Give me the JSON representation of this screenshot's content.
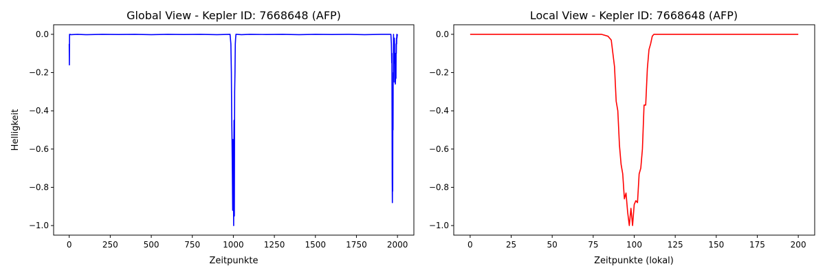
{
  "chart_data": [
    {
      "type": "line",
      "title": "Global View - Kepler ID: 7668648 (AFP)",
      "xlabel": "Zeitpunkte",
      "ylabel": "Helligkeit",
      "xlim": [
        -95,
        2100
      ],
      "ylim": [
        -1.05,
        0.05
      ],
      "xticks": [
        0,
        250,
        500,
        750,
        1000,
        1250,
        1500,
        1750,
        2000
      ],
      "yticks": [
        0.0,
        -0.2,
        -0.4,
        -0.6,
        -0.8,
        -1.0
      ],
      "xtick_labels": [
        "0",
        "250",
        "500",
        "750",
        "1000",
        "1250",
        "1500",
        "1750",
        "2000"
      ],
      "ytick_labels": [
        "0.0",
        "−0.2",
        "−0.4",
        "−0.6",
        "−0.8",
        "−1.0"
      ],
      "grid": false,
      "series": [
        {
          "color": "#0000ff",
          "x": [
            0,
            1,
            2,
            3,
            5,
            10,
            50,
            100,
            200,
            300,
            400,
            500,
            600,
            700,
            800,
            900,
            980,
            985,
            988,
            990,
            992,
            994,
            996,
            998,
            1000,
            1002,
            1004,
            1006,
            1008,
            1010,
            1012,
            1014,
            1016,
            1020,
            1050,
            1100,
            1200,
            1300,
            1400,
            1500,
            1600,
            1700,
            1800,
            1900,
            1960,
            1963,
            1965,
            1966,
            1967,
            1968,
            1969,
            1970,
            1971,
            1972,
            1973,
            1974,
            1975,
            1976,
            1977,
            1978,
            1979,
            1980,
            1981,
            1982,
            1983,
            1984,
            1985,
            1986,
            1987,
            1988,
            1989,
            1990,
            1991,
            1992,
            1993,
            1994,
            1995,
            1996,
            1997,
            1998,
            2000
          ],
          "y": [
            -0.05,
            -0.16,
            0.0,
            -0.003,
            0.0,
            -0.002,
            0.0,
            -0.002,
            0.0,
            -0.001,
            0.0,
            -0.002,
            0.0,
            -0.001,
            0.0,
            -0.002,
            0.0,
            -0.05,
            -0.2,
            -0.43,
            -0.55,
            -0.72,
            -0.92,
            -0.55,
            -0.75,
            -1.0,
            -0.45,
            -0.95,
            -0.3,
            -0.2,
            -0.05,
            -0.02,
            0.0,
            0.0,
            -0.002,
            0.0,
            -0.001,
            0.0,
            -0.002,
            0.0,
            -0.001,
            0.0,
            -0.002,
            0.0,
            0.0,
            -0.05,
            -0.15,
            -0.1,
            -0.4,
            -0.76,
            -0.88,
            -0.7,
            -0.82,
            -0.35,
            -0.5,
            -0.2,
            -0.25,
            0.0,
            -0.15,
            -0.05,
            -0.1,
            -0.1,
            -0.02,
            -0.05,
            -0.25,
            -0.23,
            -0.25,
            -0.1,
            -0.26,
            -0.24,
            -0.2,
            -0.22,
            -0.23,
            -0.05,
            -0.1,
            -0.02,
            -0.05,
            0.0,
            -0.02,
            -0.01,
            0.0
          ]
        }
      ]
    },
    {
      "type": "line",
      "title": "Local View - Kepler ID: 7668648 (AFP)",
      "xlabel": "Zeitpunkte (lokal)",
      "ylabel": "",
      "xlim": [
        -10,
        210
      ],
      "ylim": [
        -1.05,
        0.05
      ],
      "xticks": [
        0,
        25,
        50,
        75,
        100,
        125,
        150,
        175,
        200
      ],
      "yticks": [
        0.0,
        -0.2,
        -0.4,
        -0.6,
        -0.8,
        -1.0
      ],
      "xtick_labels": [
        "0",
        "25",
        "50",
        "75",
        "100",
        "125",
        "150",
        "175",
        "200"
      ],
      "ytick_labels": [
        "0.0",
        "−0.2",
        "−0.4",
        "−0.6",
        "−0.8",
        "−1.0"
      ],
      "grid": false,
      "series": [
        {
          "color": "#ff0000",
          "x": [
            0,
            10,
            20,
            30,
            40,
            50,
            60,
            70,
            80,
            84,
            86,
            87,
            88,
            89,
            90,
            91,
            92,
            93,
            94,
            95,
            96,
            97,
            98,
            99,
            100,
            101,
            102,
            103,
            104,
            105,
            106,
            107,
            108,
            109,
            110,
            111,
            112,
            115,
            120,
            130,
            140,
            150,
            160,
            170,
            180,
            190,
            200
          ],
          "y": [
            0.0,
            0.0,
            0.0,
            0.0,
            0.0,
            0.0,
            0.0,
            0.0,
            0.0,
            -0.01,
            -0.03,
            -0.1,
            -0.17,
            -0.35,
            -0.4,
            -0.58,
            -0.68,
            -0.73,
            -0.86,
            -0.83,
            -0.93,
            -1.0,
            -0.91,
            -1.0,
            -0.89,
            -0.87,
            -0.88,
            -0.73,
            -0.7,
            -0.6,
            -0.37,
            -0.37,
            -0.18,
            -0.08,
            -0.05,
            -0.01,
            0.0,
            0.0,
            0.0,
            0.0,
            0.0,
            0.0,
            0.0,
            0.0,
            0.0,
            0.0,
            0.0
          ]
        }
      ]
    }
  ]
}
